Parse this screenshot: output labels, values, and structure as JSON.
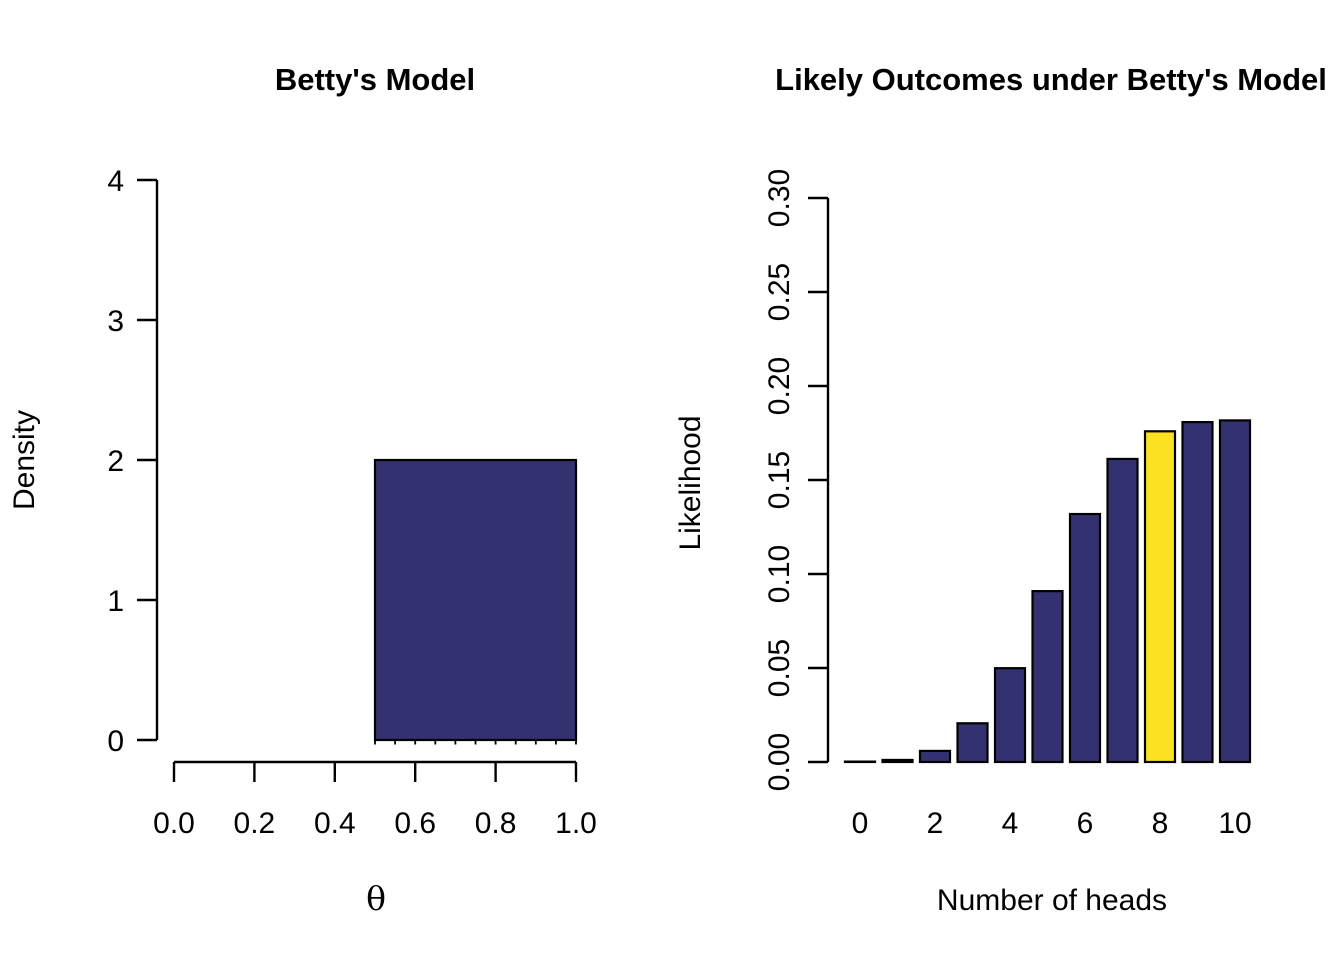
{
  "figure": {
    "background": "#ffffff",
    "axis_color": "#000000",
    "text_color": "#000000"
  },
  "chart_data": [
    {
      "type": "histogram",
      "title": "Betty's Model",
      "xlabel": "θ",
      "ylabel": "Density",
      "xlim": [
        0.0,
        1.0
      ],
      "ylim": [
        0,
        4
      ],
      "x_ticks": [
        "0.0",
        "0.2",
        "0.4",
        "0.6",
        "0.8",
        "1.0"
      ],
      "y_ticks": [
        "0",
        "1",
        "2",
        "3",
        "4"
      ],
      "segments": [
        {
          "from": 0.5,
          "to": 1.0,
          "density": 2
        }
      ],
      "bin_width": 0.05,
      "bar_color": "#333170",
      "bar_stroke": "#000000",
      "grid": "off",
      "legend": "none"
    },
    {
      "type": "bar",
      "title": "Likely Outcomes under Betty's Model",
      "xlabel": "Number of heads",
      "ylabel": "Likelihood",
      "categories": [
        0,
        1,
        2,
        3,
        4,
        5,
        6,
        7,
        8,
        9,
        10
      ],
      "values": [
        0.0001,
        0.0011,
        0.0059,
        0.0206,
        0.0499,
        0.0909,
        0.1319,
        0.1612,
        0.1759,
        0.1808,
        0.1817
      ],
      "highlight_index": 8,
      "highlight_color": "#FBE122",
      "bar_color": "#333170",
      "bar_stroke": "#000000",
      "ylim": [
        0.0,
        0.3
      ],
      "y_ticks": [
        "0.00",
        "0.05",
        "0.10",
        "0.15",
        "0.20",
        "0.25",
        "0.30"
      ],
      "x_tick_labels": [
        "0",
        "2",
        "4",
        "6",
        "8",
        "10"
      ],
      "x_tick_indices": [
        0,
        2,
        4,
        6,
        8,
        10
      ],
      "grid": "off",
      "legend": "none"
    }
  ]
}
